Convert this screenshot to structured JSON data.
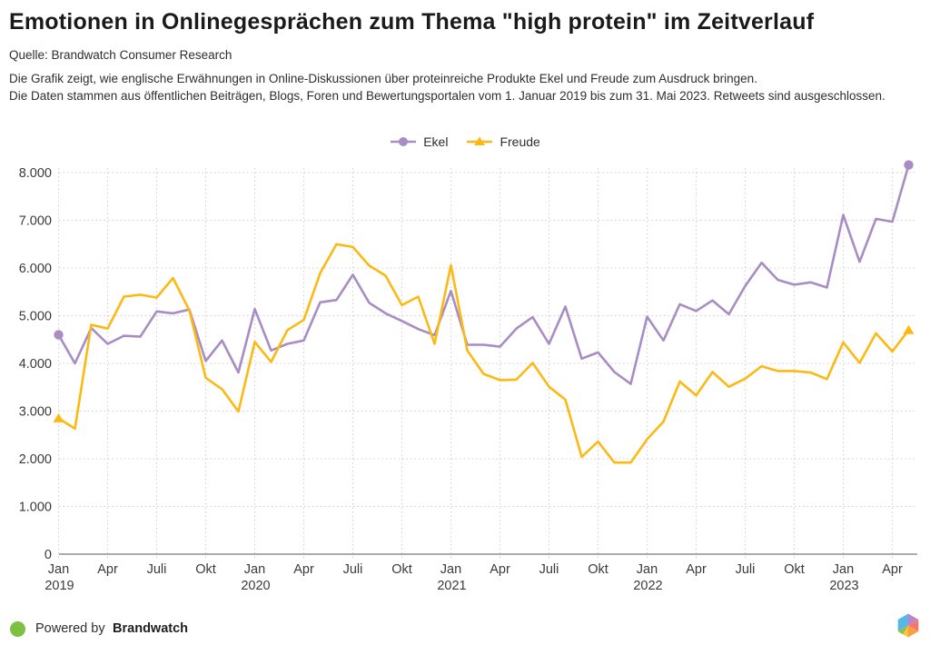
{
  "header": {
    "title": "Emotionen in Onlinegesprächen zum Thema \"high protein\" im Zeitverlauf",
    "source": "Quelle: Brandwatch Consumer Research",
    "description_line1": "Die Grafik zeigt, wie englische Erwähnungen in Online-Diskussionen über proteinreiche Produkte Ekel und Freude zum Ausdruck bringen.",
    "description_line2": "Die Daten stammen aus öffentlichen Beiträgen, Blogs, Foren und Bewertungsportalen vom 1. Januar 2019 bis zum 31. Mai 2023. Retweets sind ausgeschlossen."
  },
  "chart_data": {
    "type": "line",
    "x": [
      "2019-01",
      "2019-02",
      "2019-03",
      "2019-04",
      "2019-05",
      "2019-06",
      "2019-07",
      "2019-08",
      "2019-09",
      "2019-10",
      "2019-11",
      "2019-12",
      "2020-01",
      "2020-02",
      "2020-03",
      "2020-04",
      "2020-05",
      "2020-06",
      "2020-07",
      "2020-08",
      "2020-09",
      "2020-10",
      "2020-11",
      "2020-12",
      "2021-01",
      "2021-02",
      "2021-03",
      "2021-04",
      "2021-05",
      "2021-06",
      "2021-07",
      "2021-08",
      "2021-09",
      "2021-10",
      "2021-11",
      "2021-12",
      "2022-01",
      "2022-02",
      "2022-03",
      "2022-04",
      "2022-05",
      "2022-06",
      "2022-07",
      "2022-08",
      "2022-09",
      "2022-10",
      "2022-11",
      "2022-12",
      "2023-01",
      "2023-02",
      "2023-03",
      "2023-04",
      "2023-05"
    ],
    "series": [
      {
        "name": "Ekel",
        "color": "#a88cc4",
        "marker": "circle",
        "values": [
          4600,
          4000,
          4740,
          4410,
          4580,
          4560,
          5090,
          5050,
          5130,
          4050,
          4480,
          3810,
          5140,
          4270,
          4410,
          4480,
          5280,
          5330,
          5860,
          5270,
          5050,
          4890,
          4720,
          4590,
          5520,
          4390,
          4390,
          4350,
          4730,
          4970,
          4410,
          5190,
          4100,
          4230,
          3820,
          3570,
          4980,
          4480,
          5240,
          5100,
          5320,
          5030,
          5620,
          6110,
          5750,
          5650,
          5700,
          5590,
          7110,
          6130,
          7030,
          6970,
          8160
        ]
      },
      {
        "name": "Freude",
        "color": "#fdb913",
        "marker": "triangle",
        "values": [
          2850,
          2630,
          4810,
          4730,
          5400,
          5440,
          5380,
          5790,
          5110,
          3700,
          3460,
          2990,
          4450,
          4030,
          4700,
          4910,
          5890,
          6500,
          6440,
          6050,
          5840,
          5220,
          5400,
          4410,
          6060,
          4270,
          3780,
          3650,
          3660,
          4010,
          3510,
          3240,
          2040,
          2360,
          1920,
          1920,
          2410,
          2780,
          3620,
          3330,
          3820,
          3510,
          3680,
          3940,
          3840,
          3840,
          3810,
          3670,
          4440,
          4010,
          4630,
          4250,
          4700
        ]
      }
    ],
    "ylim": [
      0,
      8000
    ],
    "ytick_interval": 1000,
    "ytick_labels": [
      "0",
      "1.000",
      "2.000",
      "3.000",
      "4.000",
      "5.000",
      "6.000",
      "7.000",
      "8.000"
    ],
    "xticks": [
      {
        "i": 0,
        "m": "Jan",
        "y": "2019"
      },
      {
        "i": 3,
        "m": "Apr"
      },
      {
        "i": 6,
        "m": "Juli"
      },
      {
        "i": 9,
        "m": "Okt"
      },
      {
        "i": 12,
        "m": "Jan",
        "y": "2020"
      },
      {
        "i": 15,
        "m": "Apr"
      },
      {
        "i": 18,
        "m": "Juli"
      },
      {
        "i": 21,
        "m": "Okt"
      },
      {
        "i": 24,
        "m": "Jan",
        "y": "2021"
      },
      {
        "i": 27,
        "m": "Apr"
      },
      {
        "i": 30,
        "m": "Juli"
      },
      {
        "i": 33,
        "m": "Okt"
      },
      {
        "i": 36,
        "m": "Jan",
        "y": "2022"
      },
      {
        "i": 39,
        "m": "Apr"
      },
      {
        "i": 42,
        "m": "Juli"
      },
      {
        "i": 45,
        "m": "Okt"
      },
      {
        "i": 48,
        "m": "Jan",
        "y": "2023"
      },
      {
        "i": 51,
        "m": "Apr"
      }
    ],
    "grid": "dotted",
    "legend_position": "top-center"
  },
  "footer": {
    "powered_by": "Powered by",
    "brand": "Brandwatch",
    "dot_color": "#7dc142"
  },
  "logo": {
    "colors": [
      "#59b7e8",
      "#bc85c9",
      "#f4766f",
      "#f9a13d",
      "#fdc243",
      "#8bc542"
    ]
  }
}
